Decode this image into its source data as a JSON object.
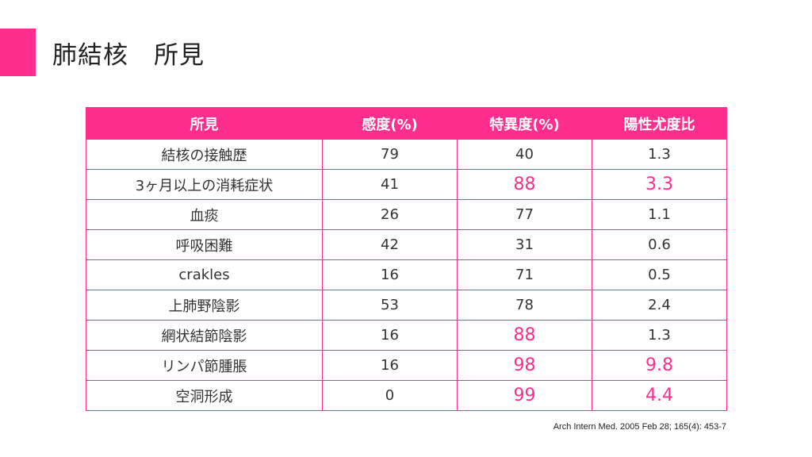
{
  "slide": {
    "title": "肺結核　所見",
    "accent_color": "#ff2d8e"
  },
  "table": {
    "headers": [
      "所見",
      "感度(%)",
      "特異度(%)",
      "陽性尤度比"
    ],
    "rows": [
      [
        "結核の接触歴",
        "79",
        "40",
        "1.3"
      ],
      [
        "3ヶ月以上の消耗症状",
        "41",
        "88",
        "3.3"
      ],
      [
        "血痰",
        "26",
        "77",
        "1.1"
      ],
      [
        "呼吸困難",
        "42",
        "31",
        "0.6"
      ],
      [
        "crakles",
        "16",
        "71",
        "0.5"
      ],
      [
        "上肺野陰影",
        "53",
        "78",
        "2.4"
      ],
      [
        "網状結節陰影",
        "16",
        "88",
        "1.3"
      ],
      [
        "リンパ節腫脹",
        "16",
        "98",
        "9.8"
      ],
      [
        "空洞形成",
        "0",
        "99",
        "4.4"
      ]
    ]
  },
  "citation": "Arch Intern Med. 2005 Feb 28; 165(4): 453-7"
}
